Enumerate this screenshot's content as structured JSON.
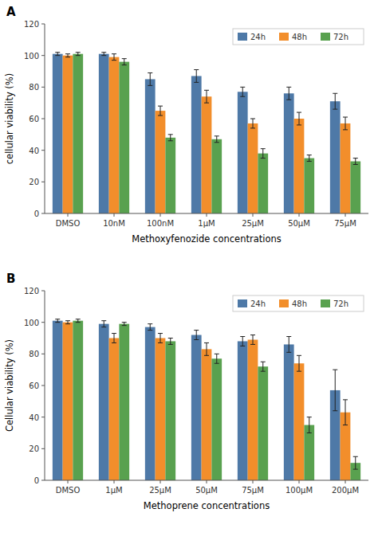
{
  "chart_data": [
    {
      "type": "bar",
      "title": "A",
      "categories": [
        "DMSO",
        "10nM",
        "100nM",
        "1μM",
        "25μM",
        "50μM",
        "75μM"
      ],
      "xlabel": "Methoxyfenozide concentrations",
      "ylabel": "cellular viability (%)",
      "ylim": [
        0,
        120
      ],
      "yticks": [
        0,
        20,
        40,
        60,
        80,
        100,
        120
      ],
      "grid": false,
      "legend": "upper right",
      "series": [
        {
          "name": "24h",
          "values": [
            101,
            101,
            85,
            87,
            77,
            76,
            71
          ],
          "errors": [
            1,
            1,
            4,
            4,
            3,
            4,
            5
          ]
        },
        {
          "name": "48h",
          "values": [
            100,
            99,
            65,
            74,
            57,
            60,
            57
          ],
          "errors": [
            1,
            2,
            3,
            4,
            3,
            4,
            4
          ]
        },
        {
          "name": "72h",
          "values": [
            101,
            96,
            48,
            47,
            38,
            35,
            33
          ],
          "errors": [
            1,
            2,
            2,
            2,
            3,
            2,
            2
          ]
        }
      ]
    },
    {
      "type": "bar",
      "title": "B",
      "categories": [
        "DMSO",
        "1μM",
        "25μM",
        "50μM",
        "75μM",
        "100μM",
        "200μM"
      ],
      "xlabel": "Methoprene concentrations",
      "ylabel": "Cellular viability (%)",
      "ylim": [
        0,
        120
      ],
      "yticks": [
        0,
        20,
        40,
        60,
        80,
        100,
        120
      ],
      "grid": false,
      "legend": "upper right",
      "series": [
        {
          "name": "24h",
          "values": [
            101,
            99,
            97,
            92,
            88,
            86,
            57
          ],
          "errors": [
            1,
            2,
            2,
            3,
            3,
            5,
            13
          ]
        },
        {
          "name": "48h",
          "values": [
            100,
            90,
            90,
            83,
            89,
            74,
            43
          ],
          "errors": [
            1,
            3,
            3,
            4,
            3,
            5,
            8
          ]
        },
        {
          "name": "72h",
          "values": [
            101,
            99,
            88,
            77,
            72,
            35,
            11
          ],
          "errors": [
            1,
            1,
            2,
            3,
            3,
            5,
            4
          ]
        }
      ]
    }
  ]
}
